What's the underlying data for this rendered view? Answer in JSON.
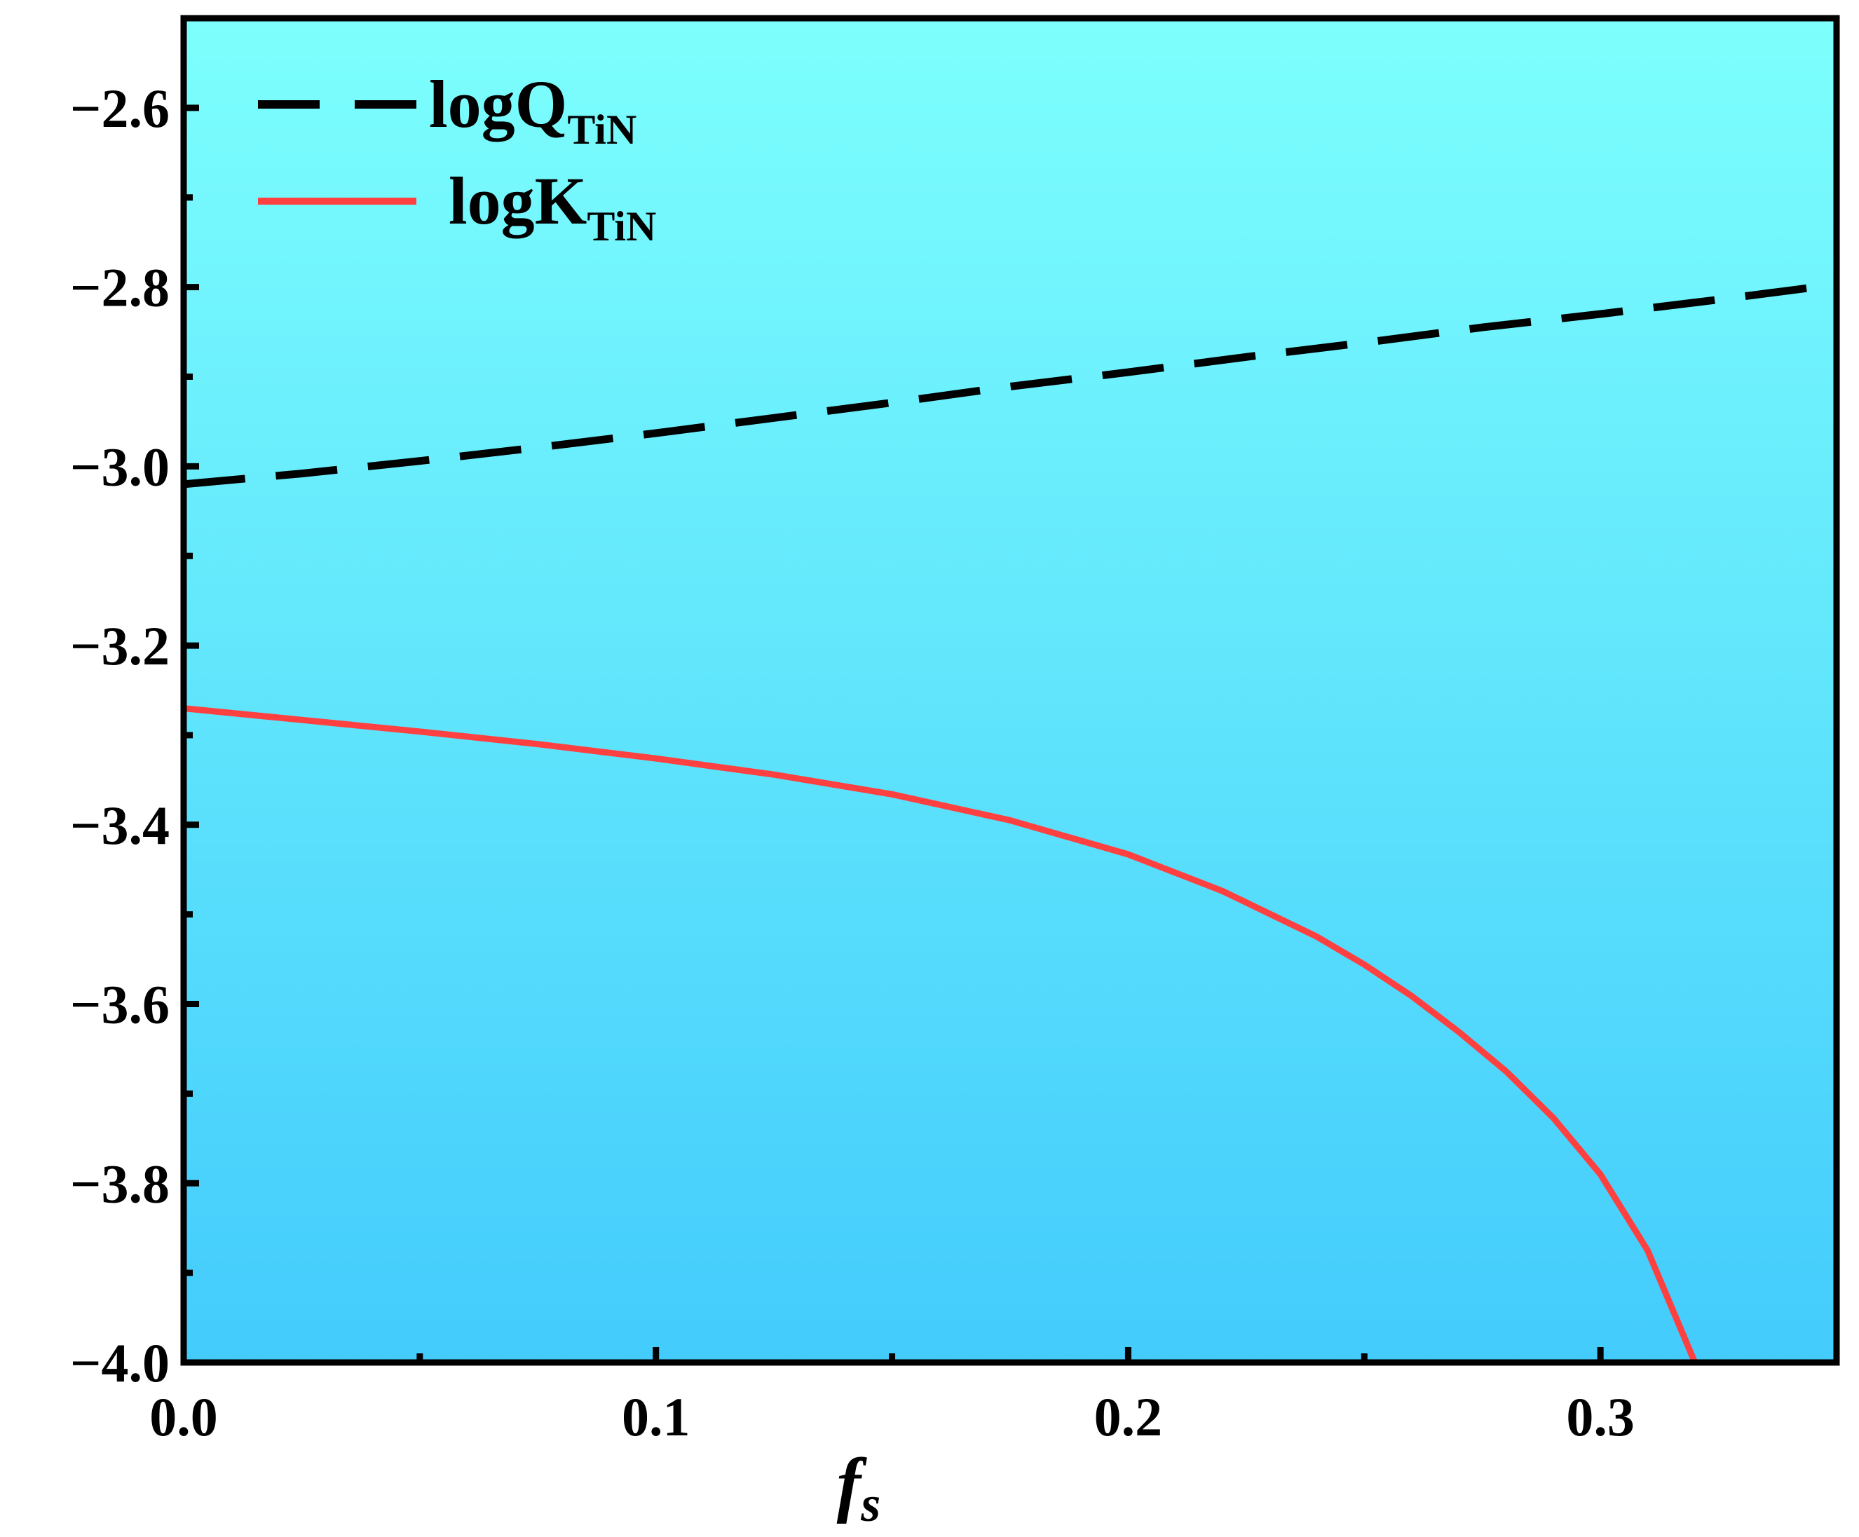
{
  "chart_data": {
    "type": "line",
    "title": "",
    "xlabel": {
      "main": "f",
      "sub": "s"
    },
    "ylabel": "",
    "xlim": [
      0.0,
      0.35
    ],
    "ylim": [
      -4.0,
      -2.5
    ],
    "x_ticks": [
      0.0,
      0.1,
      0.2,
      0.3
    ],
    "x_tick_labels": [
      "0.0",
      "0.1",
      "0.2",
      "0.3"
    ],
    "x_minor_ticks": [
      0.05,
      0.15,
      0.25,
      0.35
    ],
    "y_ticks": [
      -4.0,
      -3.8,
      -3.6,
      -3.4,
      -3.2,
      -3.0,
      -2.8,
      -2.6
    ],
    "y_tick_labels": [
      "−4.0",
      "−3.8",
      "−3.6",
      "−3.4",
      "−3.2",
      "−3.0",
      "−2.8",
      "−2.6"
    ],
    "y_minor_ticks": [
      -3.9,
      -3.7,
      -3.5,
      -3.3,
      -3.1,
      -2.9,
      -2.7
    ],
    "grid": false,
    "legend_position": "top-left",
    "background_gradient": [
      "#7DFFFD",
      "#43CBFC"
    ],
    "series": [
      {
        "name": "logQ",
        "name_sub": "TiN",
        "style": "dashed",
        "color": "#000000",
        "x": [
          0.0,
          0.025,
          0.05,
          0.075,
          0.1,
          0.125,
          0.15,
          0.175,
          0.2,
          0.225,
          0.25,
          0.275,
          0.3,
          0.325,
          0.35
        ],
        "y": [
          -3.02,
          -3.008,
          -2.994,
          -2.979,
          -2.963,
          -2.946,
          -2.929,
          -2.911,
          -2.895,
          -2.878,
          -2.862,
          -2.845,
          -2.83,
          -2.814,
          -2.797
        ]
      },
      {
        "name": "logK",
        "name_sub": "TiN",
        "style": "solid",
        "color": "#FF4040",
        "x": [
          0.0,
          0.025,
          0.05,
          0.075,
          0.1,
          0.125,
          0.15,
          0.175,
          0.2,
          0.22,
          0.24,
          0.25,
          0.26,
          0.27,
          0.28,
          0.29,
          0.3,
          0.31,
          0.32
        ],
        "y": [
          -3.27,
          -3.283,
          -3.296,
          -3.31,
          -3.326,
          -3.344,
          -3.366,
          -3.395,
          -3.433,
          -3.474,
          -3.525,
          -3.556,
          -3.591,
          -3.631,
          -3.675,
          -3.727,
          -3.79,
          -3.875,
          -4.0
        ]
      }
    ]
  }
}
